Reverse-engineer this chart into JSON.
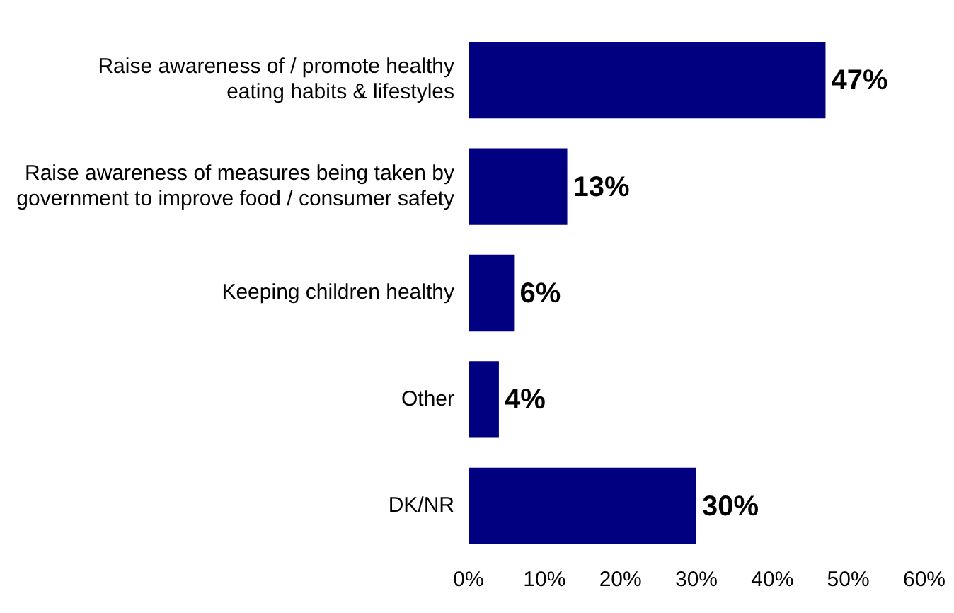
{
  "chart_data": {
    "type": "bar",
    "orientation": "horizontal",
    "categories": [
      "Raise awareness of / promote healthy\neating habits & lifestyles",
      "Raise awareness of measures being taken by\ngovernment to improve food / consumer safety",
      "Keeping children healthy",
      "Other",
      "DK/NR"
    ],
    "values": [
      47,
      13,
      6,
      4,
      30
    ],
    "value_labels": [
      "47%",
      "13%",
      "6%",
      "4%",
      "30%"
    ],
    "color": "#000080",
    "xlim": [
      0,
      60
    ],
    "xticks": [
      {
        "value": 0,
        "label": "0%"
      },
      {
        "value": 10,
        "label": "10%"
      },
      {
        "value": 20,
        "label": "20%"
      },
      {
        "value": 30,
        "label": "30%"
      },
      {
        "value": 40,
        "label": "40%"
      },
      {
        "value": 50,
        "label": "50%"
      },
      {
        "value": 60,
        "label": "60%"
      }
    ],
    "grid": false,
    "legend": false
  }
}
